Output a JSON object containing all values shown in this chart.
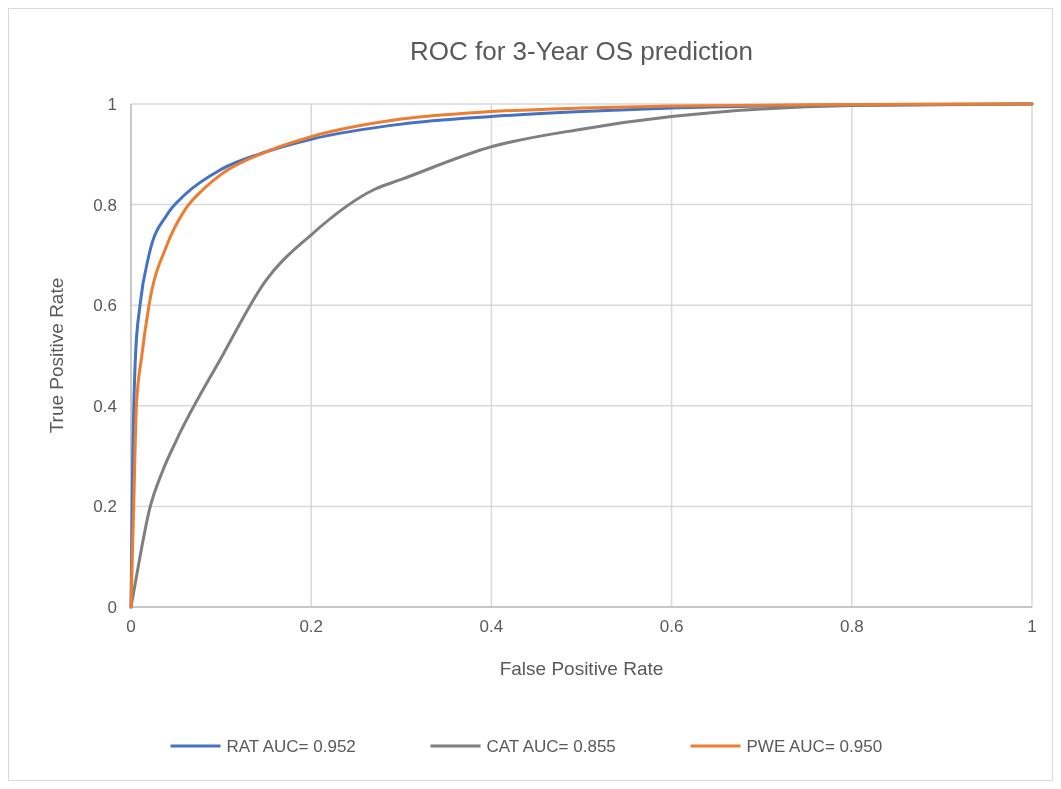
{
  "chart_data": {
    "type": "line",
    "title": "ROC for 3-Year OS prediction",
    "xlabel": "False Positive Rate",
    "ylabel": "True Positive Rate",
    "xlim": [
      0,
      1
    ],
    "xticks": [
      0,
      0.2,
      0.4,
      0.6,
      0.8,
      1
    ],
    "ylim": [
      0,
      1
    ],
    "yticks": [
      0,
      0.2,
      0.4,
      0.6,
      0.8,
      1
    ],
    "grid": true,
    "legend": "bottom",
    "marker": "none",
    "line_style": "solid",
    "series": [
      {
        "name": "RAT AUC= 0.952",
        "color": "#4472c4",
        "x": [
          0,
          0.002,
          0.005,
          0.01,
          0.02,
          0.04,
          0.06,
          0.1,
          0.15,
          0.2,
          0.3,
          0.4,
          0.5,
          0.6,
          0.8,
          1
        ],
        "values": [
          0,
          0.3,
          0.5,
          0.6,
          0.7,
          0.78,
          0.82,
          0.87,
          0.905,
          0.93,
          0.96,
          0.975,
          0.985,
          0.992,
          0.998,
          1
        ]
      },
      {
        "name": "CAT AUC= 0.855",
        "color": "#7f7f7f",
        "x": [
          0,
          0.01,
          0.02,
          0.035,
          0.05,
          0.1,
          0.15,
          0.2,
          0.27,
          0.3,
          0.4,
          0.5,
          0.6,
          0.7,
          0.8,
          1
        ],
        "values": [
          0,
          0.1,
          0.19,
          0.27,
          0.33,
          0.495,
          0.65,
          0.74,
          0.83,
          0.85,
          0.915,
          0.95,
          0.975,
          0.99,
          0.997,
          1
        ]
      },
      {
        "name": "PWE AUC= 0.950",
        "color": "#ed7d31",
        "x": [
          0,
          0.003,
          0.006,
          0.012,
          0.02,
          0.04,
          0.06,
          0.08,
          0.1,
          0.15,
          0.2,
          0.3,
          0.4,
          0.5,
          0.6,
          0.8,
          1
        ],
        "values": [
          0,
          0.2,
          0.4,
          0.5,
          0.6,
          0.72,
          0.79,
          0.83,
          0.86,
          0.905,
          0.935,
          0.97,
          0.985,
          0.992,
          0.996,
          0.999,
          1
        ]
      }
    ]
  }
}
